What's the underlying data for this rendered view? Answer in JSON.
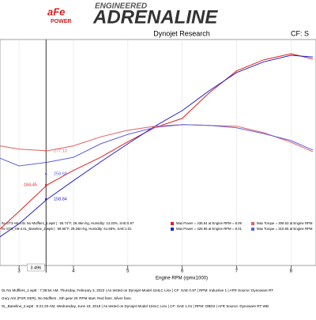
{
  "header": {
    "brand_small": "aFe",
    "brand_sub": "POWER",
    "tagline": "ENGINEERED",
    "title": "ADRENALINE",
    "subtitle": "Dynojet Research",
    "cf": "CF: S"
  },
  "chart_data": {
    "type": "line",
    "x": [
      2.65,
      3,
      3.52,
      4,
      4.5,
      5,
      5.5,
      6,
      6.5,
      7,
      7.5,
      8,
      8.4
    ],
    "xlim": [
      2.65,
      8.46
    ],
    "xticks": [
      3,
      4,
      5,
      6,
      7,
      8
    ],
    "ylim": [
      0,
      540
    ],
    "xlabel": "Engine RPM (rpmx1000)",
    "cursor": {
      "value": 3.496,
      "label": "3.496"
    },
    "series": [
      {
        "name": "Max Power = 436.54 at Engine RPM = 8.09",
        "color": "#e02020",
        "values": [
          87,
          130,
          195,
          230,
          262,
          300,
          335,
          357,
          420,
          473,
          500,
          515,
          502
        ]
      },
      {
        "name": "Max Power = 428.96 at Engine RPM = 8.01",
        "color": "#2020d0",
        "values": [
          68,
          100,
          160,
          205,
          251,
          295,
          338,
          376,
          425,
          469,
          495,
          511,
          507
        ]
      },
      {
        "name": "Max Torque = 309.53 at Engine RPM",
        "color": "#e06060",
        "values": [
          290,
          282,
          278,
          290,
          312,
          328,
          338,
          342,
          340,
          338,
          322,
          299,
          276
        ]
      },
      {
        "name": "Max Torque = 310.65 at Engine RPM",
        "color": "#6060e0",
        "values": [
          260,
          241,
          250,
          262,
          295,
          318,
          335,
          342,
          340,
          334,
          320,
          303,
          280
        ]
      }
    ],
    "annotations": [
      "277.13",
      "258.68",
      "184.45",
      "158.84"
    ],
    "run_labels": [
      "he GT3 H6-4.0L No Mufflers_1.wp8 | : 55.74°F, 29.46in-hg, Humidity: 13.33%, SAE:0.97",
      "he GT3_H6-4.0L_Baseline_2.wp8 | : 69.55°F, 29.26in-hg, Humidity: 61.58%, SAE:1.01"
    ]
  },
  "footer": [
    "0L No Mufflers_1.wp8 : 7:39:54 AM, Thursday, February 3, 2022 | As tested on Dynojet Model 424LC Linx | CF: SAE 0.97 | RPM: Inductive 1 | AFR Source: Dynoware RT",
    "ctory AIS (PSR OER), No Mufflers , 5th gear 2K RPM start. Red fans. Silver fans.",
    "0L_Baseline_2.wp8 : 8:21:20 AM, Wednesday, June 19, 2019 | As tested on Dynojet Model 424LC Linx | CF: SAE 1.01 | RPM: OBD2 | AFR Source: Dynoware RT WB"
  ]
}
